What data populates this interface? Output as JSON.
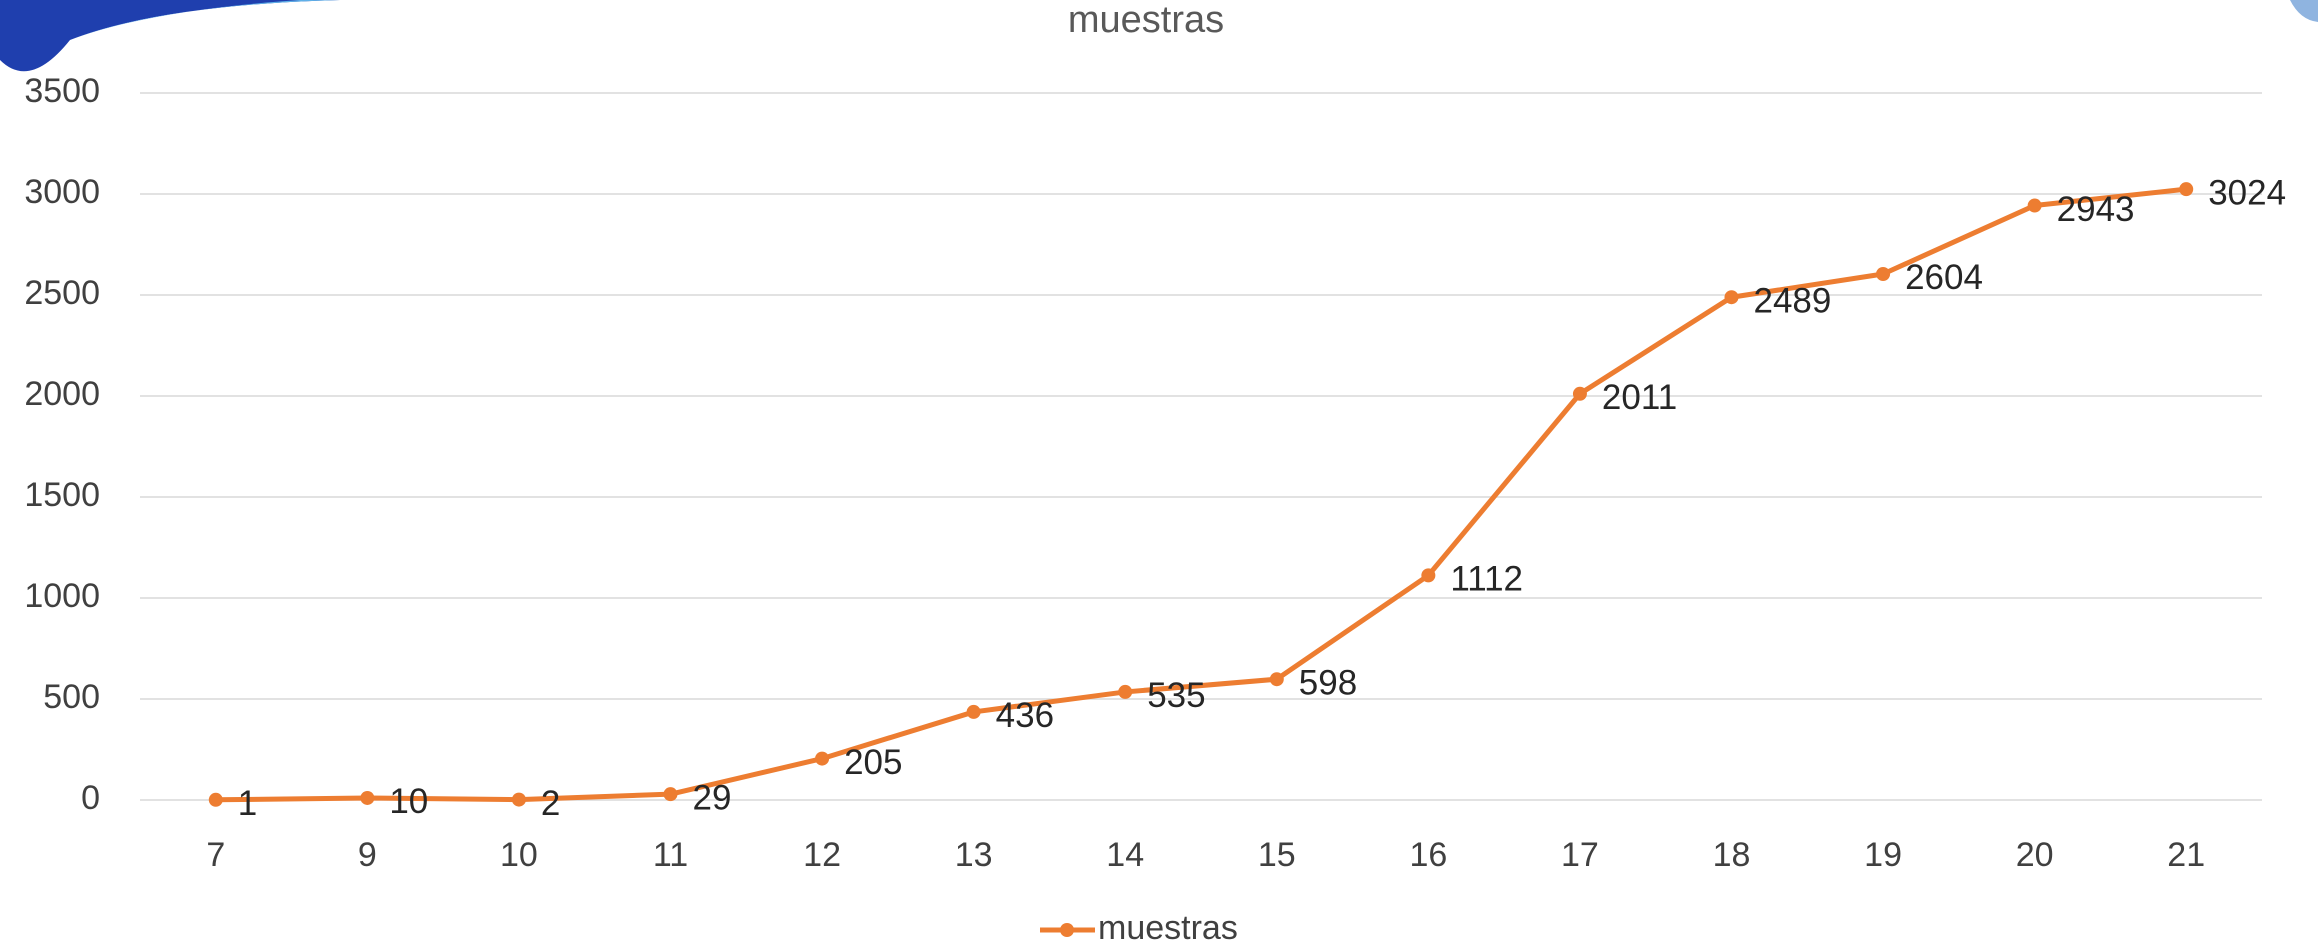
{
  "chart_data": {
    "type": "line",
    "title": "muestras",
    "categories": [
      "7",
      "9",
      "10",
      "11",
      "12",
      "13",
      "14",
      "15",
      "16",
      "17",
      "18",
      "19",
      "20",
      "21"
    ],
    "series": [
      {
        "name": "muestras",
        "color": "#ed7d31",
        "values": [
          1,
          10,
          2,
          29,
          205,
          436,
          535,
          598,
          1112,
          2011,
          2489,
          2604,
          2943,
          3024
        ]
      }
    ],
    "ylim": [
      0,
      3500
    ],
    "yticks": [
      0,
      500,
      1000,
      1500,
      2000,
      2500,
      3000,
      3500
    ],
    "grid": true,
    "legend": "bottom"
  }
}
